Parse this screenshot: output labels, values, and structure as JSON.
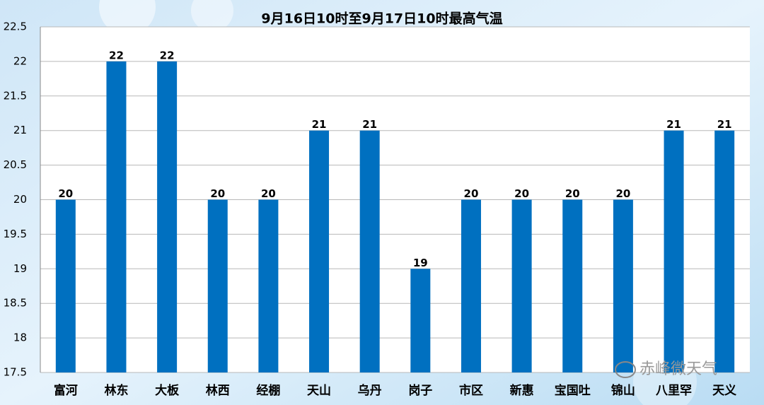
{
  "chart_data": {
    "type": "bar",
    "title": "9月16日10时至9月17日10时最高气温",
    "categories": [
      "富河",
      "林东",
      "大板",
      "林西",
      "经棚",
      "天山",
      "乌丹",
      "岗子",
      "市区",
      "新惠",
      "宝国吐",
      "锦山",
      "八里罕",
      "天义"
    ],
    "values": [
      20,
      22,
      22,
      20,
      20,
      21,
      21,
      19,
      20,
      20,
      20,
      20,
      21,
      21
    ],
    "color": "#0070c0",
    "ylim": [
      17.5,
      22.5
    ],
    "yticks": [
      17.5,
      18,
      18.5,
      19,
      19.5,
      20,
      20.5,
      21,
      21.5,
      22,
      22.5
    ],
    "grid": true,
    "watermark": "赤峰微天气"
  }
}
